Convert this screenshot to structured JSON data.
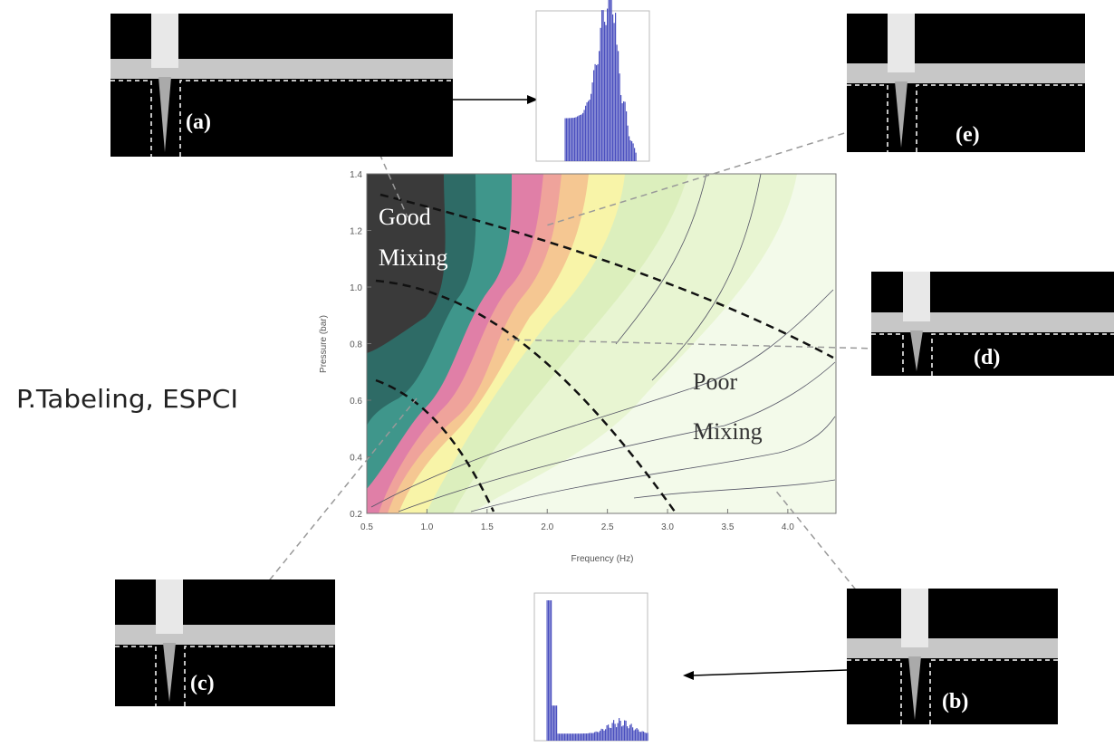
{
  "credit": "P.Tabeling, ESPCI",
  "plot": {
    "x_label": "Frequency (Hz)",
    "y_label": "Pressure (bar)",
    "xlim": [
      0.5,
      4.4
    ],
    "ylim": [
      0.2,
      1.4
    ],
    "xticks": [
      0.5,
      {
        "value": 1,
        "label": "1.0"
      },
      1.5,
      {
        "value": 2,
        "label": "2.0"
      },
      2.5,
      {
        "value": 3,
        "label": "3.0"
      },
      3.5,
      {
        "value": 4,
        "label": "4.0"
      }
    ],
    "yticks": [
      0.2,
      0.4,
      0.6,
      0.8,
      {
        "value": 1,
        "label": "1.0"
      },
      1.2,
      1.4
    ],
    "good_label": [
      "Good",
      "Mixing"
    ],
    "poor_label": [
      "Poor",
      "Mixing"
    ]
  },
  "panels": [
    "(a)",
    "(b)",
    "(c)",
    "(d)",
    "(e)"
  ]
}
